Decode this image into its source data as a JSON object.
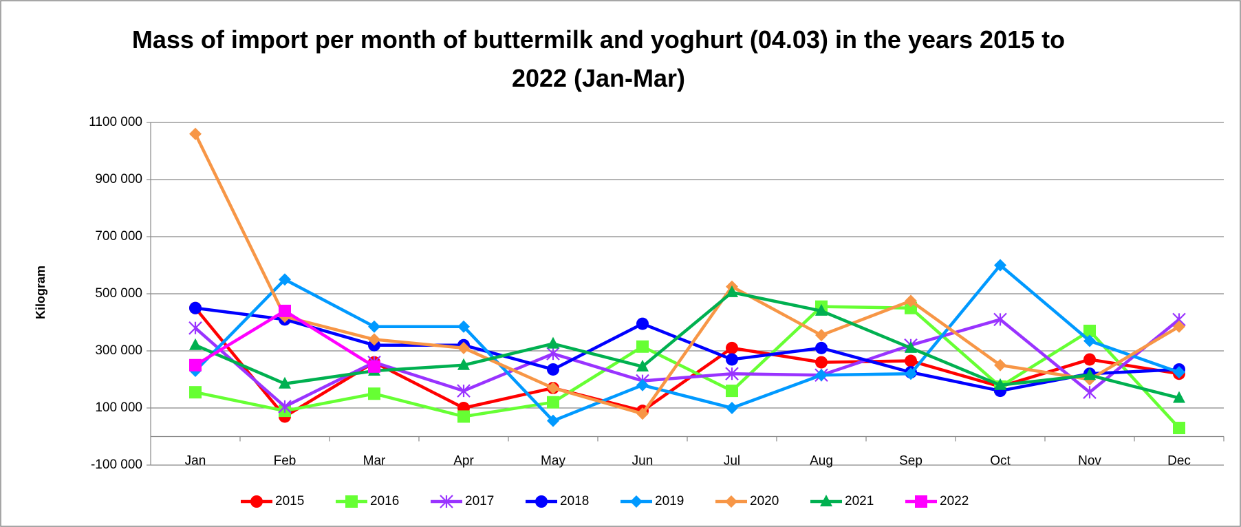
{
  "chart_data": {
    "type": "line",
    "title": "Mass of import per month of buttermilk and yoghurt (04.03) in the years 2015 to 2022 (Jan-Mar)",
    "y_label": "Kilogram",
    "categories": [
      "Jan",
      "Feb",
      "Mar",
      "Apr",
      "May",
      "Jun",
      "Jul",
      "Aug",
      "Sep",
      "Oct",
      "Nov",
      "Dec"
    ],
    "ylim": [
      -100000,
      1100000
    ],
    "yticks": [
      {
        "value": -100000,
        "label": "-100 000"
      },
      {
        "value": 100000,
        "label": "100 000"
      },
      {
        "value": 300000,
        "label": "300 000"
      },
      {
        "value": 500000,
        "label": "500 000"
      },
      {
        "value": 700000,
        "label": "700 000"
      },
      {
        "value": 900000,
        "label": "900 000"
      },
      {
        "value": 1100000,
        "label": "1100 000"
      }
    ],
    "grid": true,
    "legend": "bottom",
    "series": [
      {
        "name": "2015",
        "color": "#ff0000",
        "marker": "circle",
        "values": [
          450000,
          70000,
          260000,
          100000,
          170000,
          90000,
          310000,
          260000,
          265000,
          175000,
          270000,
          220000
        ]
      },
      {
        "name": "2016",
        "color": "#66ff33",
        "marker": "square",
        "values": [
          155000,
          90000,
          150000,
          70000,
          120000,
          315000,
          160000,
          455000,
          450000,
          175000,
          370000,
          30000
        ]
      },
      {
        "name": "2017",
        "color": "#9933ff",
        "marker": "star",
        "values": [
          380000,
          105000,
          260000,
          160000,
          290000,
          195000,
          220000,
          215000,
          320000,
          410000,
          155000,
          410000
        ]
      },
      {
        "name": "2018",
        "color": "#0000ff",
        "marker": "circle",
        "values": [
          450000,
          410000,
          320000,
          320000,
          235000,
          395000,
          270000,
          310000,
          225000,
          160000,
          220000,
          235000
        ]
      },
      {
        "name": "2019",
        "color": "#0099ff",
        "marker": "diamond",
        "values": [
          230000,
          550000,
          385000,
          385000,
          55000,
          180000,
          100000,
          215000,
          220000,
          600000,
          335000,
          225000
        ]
      },
      {
        "name": "2020",
        "color": "#f79646",
        "marker": "diamond",
        "values": [
          1060000,
          420000,
          340000,
          310000,
          170000,
          80000,
          525000,
          355000,
          475000,
          250000,
          200000,
          385000
        ]
      },
      {
        "name": "2021",
        "color": "#00b050",
        "marker": "triangle",
        "values": [
          320000,
          185000,
          230000,
          250000,
          325000,
          245000,
          505000,
          440000,
          310000,
          180000,
          215000,
          135000
        ]
      },
      {
        "name": "2022",
        "color": "#ff00ff",
        "marker": "square",
        "values": [
          250000,
          440000,
          245000,
          null,
          null,
          null,
          null,
          null,
          null,
          null,
          null,
          null
        ]
      }
    ]
  }
}
